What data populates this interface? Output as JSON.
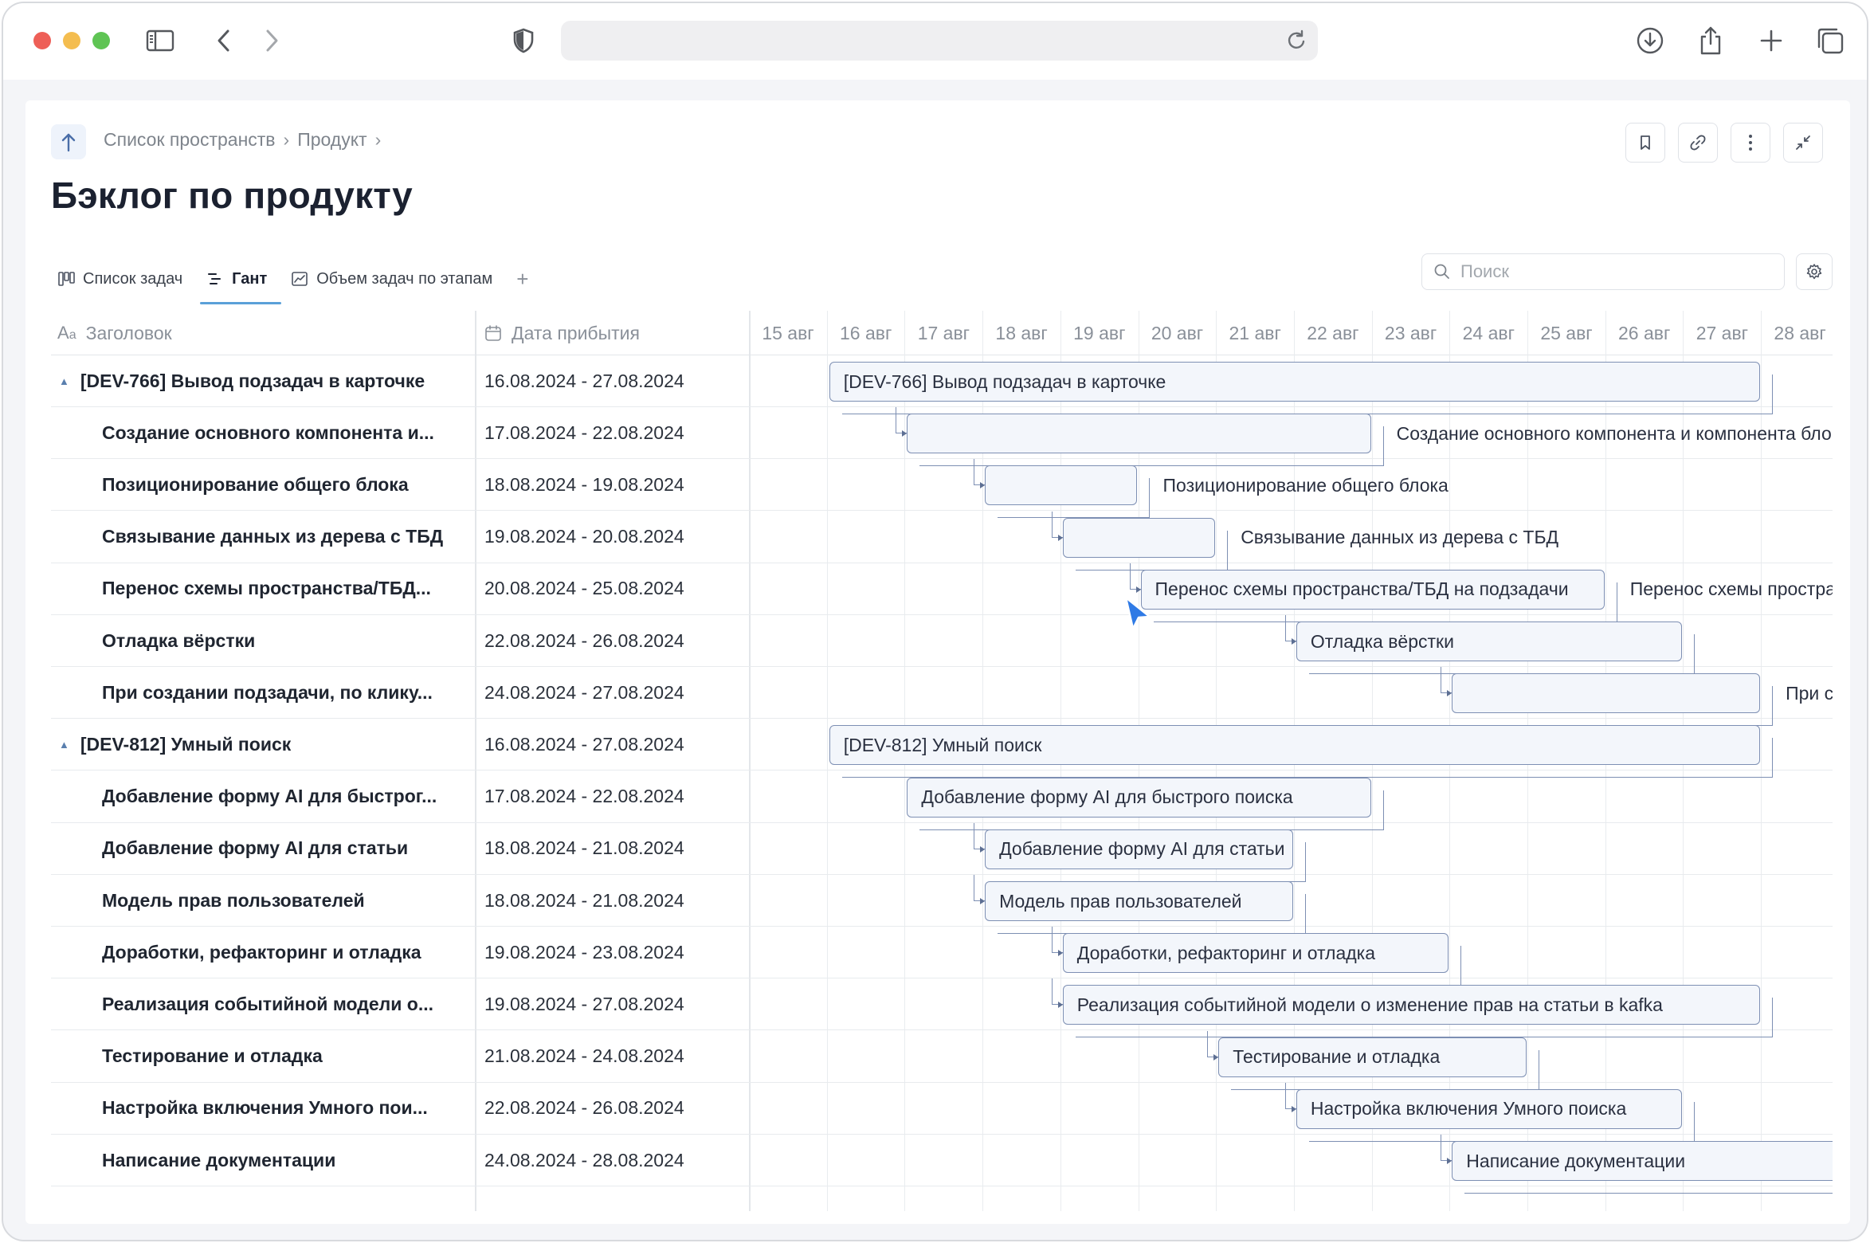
{
  "breadcrumb": {
    "item1": "Список пространств",
    "sep": "›",
    "item2": "Продукт"
  },
  "page_title": "Бэклог по продукту",
  "tabs": [
    {
      "label": "Список задач",
      "icon": "board-icon"
    },
    {
      "label": "Гант",
      "icon": "gantt-icon",
      "active": true
    },
    {
      "label": "Объем задач по этапам",
      "icon": "chart-icon"
    }
  ],
  "tab_add": "+",
  "search": {
    "placeholder": "Поиск"
  },
  "columns": {
    "title": "Заголовок",
    "date": "Дата прибытия"
  },
  "days": [
    "15 авг",
    "16 авг",
    "17 авг",
    "18 авг",
    "19 авг",
    "20 авг",
    "21 авг",
    "22 авг",
    "23 авг",
    "24 авг",
    "25 авг",
    "26 авг",
    "27 авг",
    "28 авг"
  ],
  "rows": [
    {
      "title": "[DEV-766] Вывод подзадач в карточке",
      "dates": "16.08.2024 - 27.08.2024",
      "group": true,
      "start": 1,
      "end": 13,
      "bar_label": "[DEV-766] Вывод подзадач в карточке",
      "label_inside": true
    },
    {
      "title": "Создание основного компонента и...",
      "dates": "17.08.2024 - 22.08.2024",
      "start": 2,
      "end": 8,
      "bar_label": "Создание основного компонента и компонента бло",
      "label_inside": false,
      "conn": true
    },
    {
      "title": "Позиционирование общего блока",
      "dates": "18.08.2024 - 19.08.2024",
      "start": 3,
      "end": 5,
      "bar_label": "Позиционирование общего блока",
      "label_inside": false,
      "conn": true
    },
    {
      "title": "Связывание данных из дерева с ТБД",
      "dates": "19.08.2024 - 20.08.2024",
      "start": 4,
      "end": 6,
      "bar_label": "Связывание данных из дерева с ТБД",
      "label_inside": false,
      "conn": true
    },
    {
      "title": "Перенос схемы пространства/ТБД...",
      "dates": "20.08.2024 - 25.08.2024",
      "start": 5,
      "end": 11,
      "bar_label": "Перенос схемы пространства/ТБД на подзадачи",
      "label_inside": true,
      "extra_label": "Перенос схемы простран",
      "conn": true
    },
    {
      "title": "Отладка вёрстки",
      "dates": "22.08.2024 - 26.08.2024",
      "start": 7,
      "end": 12,
      "bar_label": "Отладка вёрстки",
      "label_inside": true,
      "conn": true
    },
    {
      "title": "При создании подзадачи, по клику...",
      "dates": "24.08.2024 - 27.08.2024",
      "start": 9,
      "end": 13,
      "bar_label": "При соз",
      "label_inside": false,
      "conn": true
    },
    {
      "title": "[DEV-812] Умный поиск",
      "dates": "16.08.2024 - 27.08.2024",
      "group": true,
      "start": 1,
      "end": 13,
      "bar_label": "[DEV-812] Умный поиск",
      "label_inside": true
    },
    {
      "title": "Добавление форму AI для быстрог...",
      "dates": "17.08.2024 - 22.08.2024",
      "start": 2,
      "end": 8,
      "bar_label": "Добавление форму AI для быстрого поиска",
      "label_inside": true,
      "conn": false
    },
    {
      "title": "Добавление форму AI для статьи",
      "dates": "18.08.2024 - 21.08.2024",
      "start": 3,
      "end": 7,
      "bar_label": "Добавление форму AI для статьи",
      "label_inside": true,
      "conn": true
    },
    {
      "title": "Модель прав пользователей",
      "dates": "18.08.2024 - 21.08.2024",
      "start": 3,
      "end": 7,
      "bar_label": "Модель прав пользователей",
      "label_inside": true,
      "conn": true
    },
    {
      "title": "Доработки, рефакторинг и отладка",
      "dates": "19.08.2024 - 23.08.2024",
      "start": 4,
      "end": 9,
      "bar_label": "Доработки, рефакторинг и отладка",
      "label_inside": true,
      "conn": true
    },
    {
      "title": "Реализация событийной модели о...",
      "dates": "19.08.2024 - 27.08.2024",
      "start": 4,
      "end": 13,
      "bar_label": "Реализация событийной модели о изменение прав на статьи в kafka",
      "label_inside": true,
      "conn": true
    },
    {
      "title": "Тестирование и отладка",
      "dates": "21.08.2024 - 24.08.2024",
      "start": 6,
      "end": 10,
      "bar_label": "Тестирование и отладка",
      "label_inside": true,
      "conn": true
    },
    {
      "title": "Настройка включения Умного пои...",
      "dates": "22.08.2024 - 26.08.2024",
      "start": 7,
      "end": 12,
      "bar_label": "Настройка включения Умного поиска",
      "label_inside": true,
      "conn": true
    },
    {
      "title": "Написание документации",
      "dates": "24.08.2024 - 28.08.2024",
      "start": 9,
      "end": 14,
      "bar_label": "Написание документации",
      "label_inside": true,
      "conn": true
    }
  ],
  "colors": {
    "bar_border": "#7d8fb3",
    "bar_fill": "#f3f6fb",
    "accent": "#5aa0d8",
    "cursor": "#2f7ae5"
  }
}
